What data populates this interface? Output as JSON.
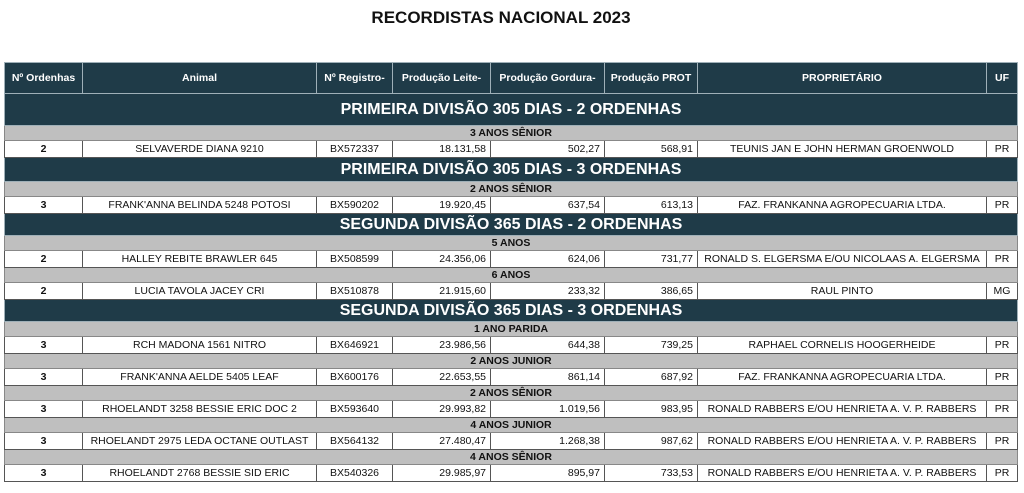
{
  "title": "RECORDISTAS NACIONAL 2023",
  "table": {
    "header": [
      "Nº Ordenhas",
      "Animal",
      "Nº Registro-",
      "Produção Leite-",
      "Produção Gordura-",
      "Produção PROT",
      "PROPRIETÁRIO",
      "UF"
    ],
    "sections": [
      {
        "title": "PRIMEIRA DIVISÃO 305 DIAS -  2 ORDENHAS",
        "groups": [
          {
            "label": "3 ANOS SÊNIOR",
            "rows": [
              [
                "2",
                "SELVAVERDE DIANA 9210",
                "BX572337",
                "18.131,58",
                "502,27",
                "568,91",
                "TEUNIS JAN E JOHN HERMAN GROENWOLD",
                "PR"
              ]
            ]
          }
        ]
      },
      {
        "title": "PRIMEIRA DIVISÃO 305 DIAS -  3 ORDENHAS",
        "groups": [
          {
            "label": "2 ANOS SÊNIOR",
            "rows": [
              [
                "3",
                "FRANK'ANNA BELINDA 5248 POTOSI",
                "BX590202",
                "19.920,45",
                "637,54",
                "613,13",
                "FAZ. FRANKANNA AGROPECUARIA LTDA.",
                "PR"
              ]
            ]
          }
        ]
      },
      {
        "title": "SEGUNDA DIVISÃO 365 DIAS -  2 ORDENHAS",
        "groups": [
          {
            "label": "5 ANOS",
            "rows": [
              [
                "2",
                "HALLEY REBITE BRAWLER 645",
                "BX508599",
                "24.356,06",
                "624,06",
                "731,77",
                "RONALD S. ELGERSMA E/OU NICOLAAS A. ELGERSMA",
                "PR"
              ]
            ]
          },
          {
            "label": "6 ANOS",
            "rows": [
              [
                "2",
                "LUCIA TAVOLA JACEY CRI",
                "BX510878",
                "21.915,60",
                "233,32",
                "386,65",
                "RAUL PINTO",
                "MG"
              ]
            ]
          }
        ]
      },
      {
        "title": "SEGUNDA DIVISÃO 365 DIAS -  3 ORDENHAS",
        "groups": [
          {
            "label": "1 ANO PARIDA",
            "rows": [
              [
                "3",
                "RCH MADONA 1561 NITRO",
                "BX646921",
                "23.986,56",
                "644,38",
                "739,25",
                "RAPHAEL CORNELIS HOOGERHEIDE",
                "PR"
              ]
            ]
          },
          {
            "label": "2 ANOS JUNIOR",
            "rows": [
              [
                "3",
                "FRANK'ANNA AELDE 5405 LEAF",
                "BX600176",
                "22.653,55",
                "861,14",
                "687,92",
                "FAZ. FRANKANNA AGROPECUARIA LTDA.",
                "PR"
              ]
            ]
          },
          {
            "label": "2 ANOS SÊNIOR",
            "rows": [
              [
                "3",
                "RHOELANDT 3258 BESSIE ERIC DOC 2",
                "BX593640",
                "29.993,82",
                "1.019,56",
                "983,95",
                "RONALD RABBERS E/OU HENRIETA A. V. P. RABBERS",
                "PR"
              ]
            ]
          },
          {
            "label": "4 ANOS JUNIOR",
            "rows": [
              [
                "3",
                "RHOELANDT 2975 LEDA OCTANE OUTLAST",
                "BX564132",
                "27.480,47",
                "1.268,38",
                "987,62",
                "RONALD RABBERS E/OU HENRIETA A. V. P. RABBERS",
                "PR"
              ]
            ]
          },
          {
            "label": "4 ANOS SÊNIOR",
            "rows": [
              [
                "3",
                "RHOELANDT 2768 BESSIE SID ERIC",
                "BX540326",
                "29.985,97",
                "895,97",
                "733,53",
                "RONALD RABBERS E/OU HENRIETA A. V. P. RABBERS",
                "PR"
              ]
            ]
          }
        ]
      }
    ]
  }
}
